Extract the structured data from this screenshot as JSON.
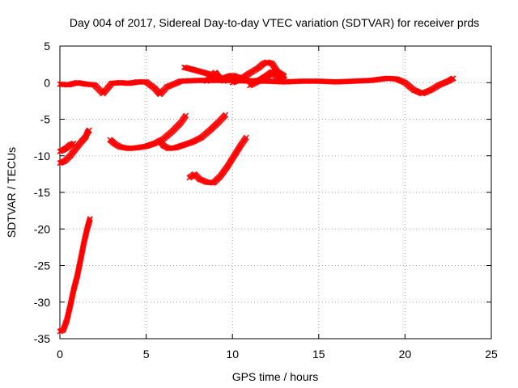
{
  "chart_data": {
    "type": "scatter",
    "title": "Day 004 of 2017, Sidereal Day-to-day VTEC variation (SDTVAR) for receiver prds",
    "xlabel": "GPS time / hours",
    "ylabel": "SDTVAR / TECUs",
    "xlim": [
      0,
      25
    ],
    "ylim": [
      -35,
      5
    ],
    "xticks": [
      0,
      5,
      10,
      15,
      20,
      25
    ],
    "yticks": [
      5,
      0,
      -5,
      -10,
      -15,
      -20,
      -25,
      -30,
      -35
    ],
    "grid": true,
    "legend": "none",
    "marker": "cross",
    "color": "#ff0000",
    "series": [
      {
        "points": [
          [
            0,
            -0.2
          ],
          [
            0.5,
            -0.3
          ],
          [
            1,
            0
          ],
          [
            1.5,
            -0.2
          ],
          [
            2,
            -0.3
          ],
          [
            2.5,
            -1.5
          ],
          [
            3,
            -0.1
          ],
          [
            3.5,
            0
          ],
          [
            4,
            -0.1
          ],
          [
            4.5,
            0.1
          ],
          [
            5,
            0.1
          ],
          [
            5.5,
            -0.8
          ],
          [
            5.8,
            -1.6
          ],
          [
            6.2,
            -0.6
          ],
          [
            7,
            0.2
          ],
          [
            8,
            0.3
          ],
          [
            9,
            0.3
          ],
          [
            10,
            0.3
          ],
          [
            11,
            0.2
          ],
          [
            12,
            0.2
          ],
          [
            13,
            0.1
          ],
          [
            14,
            0.2
          ],
          [
            15,
            0.2
          ],
          [
            16,
            0.1
          ],
          [
            17,
            0.2
          ],
          [
            18,
            0.3
          ],
          [
            19,
            0.6
          ],
          [
            19.5,
            0.5
          ],
          [
            20,
            0
          ],
          [
            20.5,
            -1
          ],
          [
            21,
            -1.5
          ],
          [
            21.5,
            -1
          ],
          [
            22,
            -0.3
          ],
          [
            22.5,
            0.2
          ],
          [
            22.8,
            0.6
          ]
        ]
      },
      {
        "points": [
          [
            7.2,
            2.1
          ],
          [
            8,
            1.6
          ],
          [
            8.6,
            1.2
          ],
          [
            9,
            0.8
          ],
          [
            9.4,
            0.5
          ],
          [
            9.7,
            0.8
          ],
          [
            10,
            1
          ],
          [
            10.5,
            0.6
          ],
          [
            11,
            0.2
          ],
          [
            11.5,
            0.3
          ],
          [
            12,
            0.8
          ],
          [
            12.5,
            1.6
          ],
          [
            13,
            0.5
          ]
        ]
      },
      {
        "points": [
          [
            8.5,
            0.2
          ],
          [
            8.8,
            0.9
          ],
          [
            9,
            1.4
          ],
          [
            9.2,
            0.8
          ],
          [
            9.5,
            0.2
          ]
        ]
      },
      {
        "points": [
          [
            10,
            0
          ],
          [
            10.5,
            0.5
          ],
          [
            11,
            1.3
          ],
          [
            11.5,
            2
          ],
          [
            11.8,
            2.6
          ],
          [
            12,
            2.8
          ],
          [
            12.3,
            2.6
          ],
          [
            12.6,
            1.5
          ],
          [
            13,
            0.9
          ]
        ]
      },
      {
        "points": [
          [
            11,
            -0.4
          ],
          [
            11.5,
            0.2
          ],
          [
            12,
            1
          ],
          [
            12.3,
            1.5
          ],
          [
            12.6,
            0.5
          ],
          [
            13,
            0.4
          ]
        ]
      },
      {
        "points": [
          [
            0,
            -9.4
          ],
          [
            0.2,
            -9.2
          ],
          [
            0.4,
            -8.9
          ],
          [
            0.6,
            -8.5
          ],
          [
            0.8,
            -8.3
          ]
        ]
      },
      {
        "points": [
          [
            0,
            -11
          ],
          [
            0.3,
            -10.7
          ],
          [
            0.6,
            -10
          ],
          [
            0.9,
            -9.1
          ],
          [
            1.2,
            -8.2
          ],
          [
            1.5,
            -7.4
          ],
          [
            1.6,
            -6.8
          ],
          [
            1.7,
            -6.5
          ]
        ]
      },
      {
        "points": [
          [
            0,
            -34
          ],
          [
            0.2,
            -33.8
          ],
          [
            0.4,
            -32.5
          ],
          [
            0.6,
            -30.5
          ],
          [
            0.8,
            -28.3
          ],
          [
            1,
            -26.5
          ],
          [
            1.2,
            -24.2
          ],
          [
            1.4,
            -21.8
          ],
          [
            1.6,
            -19.8
          ],
          [
            1.75,
            -18.6
          ]
        ]
      },
      {
        "points": [
          [
            2.9,
            -7.8
          ],
          [
            3.2,
            -8.4
          ],
          [
            3.5,
            -8.8
          ],
          [
            4,
            -9
          ],
          [
            4.5,
            -8.9
          ],
          [
            5,
            -8.7
          ],
          [
            5.5,
            -8.3
          ],
          [
            6,
            -7.7
          ],
          [
            6.5,
            -6.7
          ],
          [
            7,
            -5.5
          ],
          [
            7.3,
            -4.5
          ]
        ]
      },
      {
        "points": [
          [
            5.8,
            -8
          ],
          [
            6,
            -8.6
          ],
          [
            6.3,
            -9
          ],
          [
            6.7,
            -8.9
          ],
          [
            7.2,
            -8.5
          ],
          [
            7.7,
            -8.1
          ],
          [
            8.2,
            -7.5
          ],
          [
            8.7,
            -6.5
          ],
          [
            9.2,
            -5.4
          ],
          [
            9.6,
            -4.4
          ]
        ]
      },
      {
        "points": [
          [
            7.5,
            -13
          ],
          [
            7.8,
            -12.5
          ],
          [
            8.1,
            -13.2
          ],
          [
            8.5,
            -13.6
          ],
          [
            8.9,
            -13.7
          ],
          [
            9.3,
            -12.8
          ],
          [
            9.7,
            -11.5
          ],
          [
            10.1,
            -10
          ],
          [
            10.5,
            -8.5
          ],
          [
            10.8,
            -7.5
          ]
        ]
      }
    ]
  }
}
